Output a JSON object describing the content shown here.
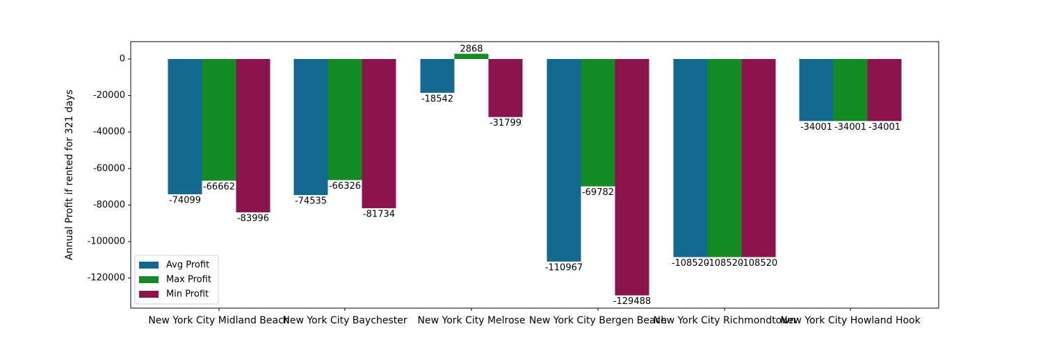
{
  "chart_data": {
    "type": "bar",
    "title": "",
    "xlabel": "",
    "ylabel": "Annual Profit if rented for 321 days",
    "categories": [
      "New York City Midland Beach",
      "New York City Baychester",
      "New York City Melrose",
      "New York City Bergen Beach",
      "New York City Richmondtown",
      "New York City Howland Hook"
    ],
    "series": [
      {
        "name": "Avg Profit",
        "color": "#13698f",
        "values": [
          -74099,
          -74535,
          -18542,
          -110967,
          -108520,
          -34001
        ]
      },
      {
        "name": "Max Profit",
        "color": "#138c23",
        "values": [
          -66662,
          -66326,
          2868,
          -69782,
          -108520,
          -34001
        ]
      },
      {
        "name": "Min Profit",
        "color": "#8c134b",
        "values": [
          -83996,
          -81734,
          -31799,
          -129488,
          -108520,
          -34001
        ]
      }
    ],
    "ylim": [
      -136470,
      9513
    ],
    "yticks": [
      0,
      -20000,
      -40000,
      -60000,
      -80000,
      -100000,
      -120000
    ],
    "legend_position": "lower-left",
    "grid": false
  }
}
